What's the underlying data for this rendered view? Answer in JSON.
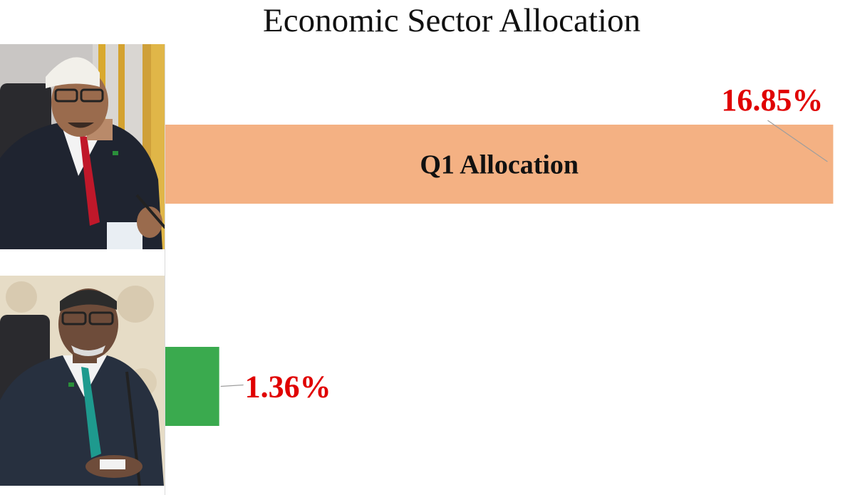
{
  "chart_data": {
    "type": "bar",
    "orientation": "horizontal",
    "title": "Economic Sector Allocation",
    "categories": [
      "Q1 Allocation",
      ""
    ],
    "values": [
      16.85,
      1.36
    ],
    "data_labels": [
      "16.85%",
      "1.36%"
    ],
    "unit": "%",
    "xlim": [
      0,
      17.4
    ],
    "grid": false,
    "legend": "none",
    "colors": {
      "bars": [
        "#f4b183",
        "#3aaa4e"
      ],
      "data_label": "#e00000",
      "leader_line": "#9e9e9e"
    }
  },
  "photos": [
    {
      "icon": "official-portrait-icon",
      "attire": [
        "white-kufi-cap",
        "red-tie"
      ]
    },
    {
      "icon": "official-portrait-icon",
      "attire": [
        "teal-tie"
      ]
    }
  ]
}
